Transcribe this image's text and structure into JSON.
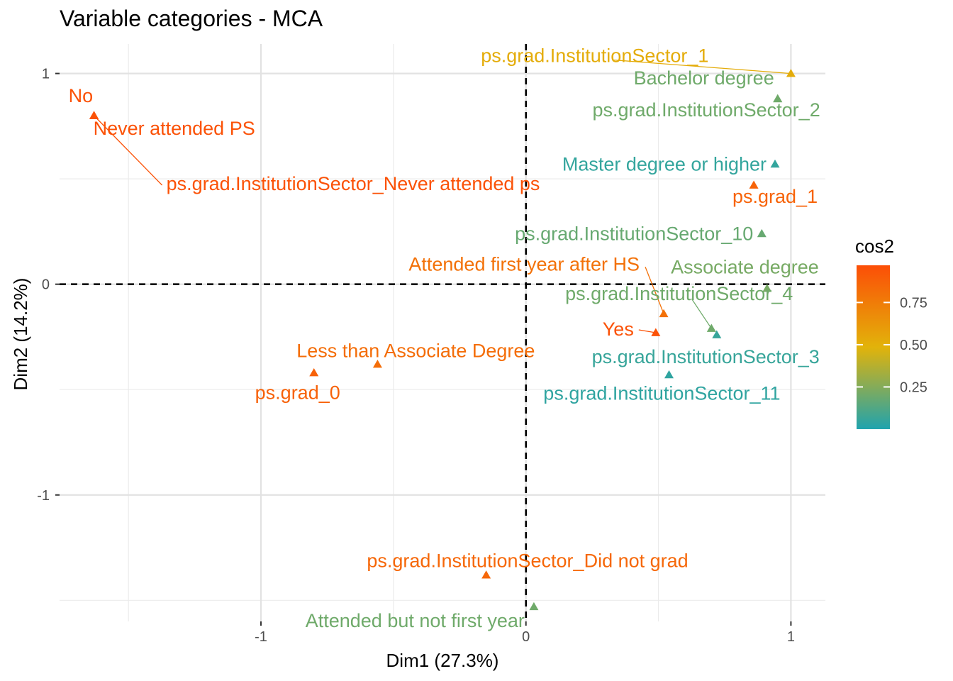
{
  "chart_data": {
    "type": "scatter",
    "title": "Variable categories - MCA",
    "xlabel": "Dim1 (27.3%)",
    "ylabel": "Dim2 (14.2%)",
    "xlim": [
      -1.76,
      1.13
    ],
    "ylim": [
      -1.6,
      1.14
    ],
    "x_ticks": [
      {
        "value": -1,
        "label": "-1"
      },
      {
        "value": 0,
        "label": "0"
      },
      {
        "value": 1,
        "label": "1"
      }
    ],
    "y_ticks": [
      {
        "value": 1,
        "label": "1"
      },
      {
        "value": 0,
        "label": "0"
      },
      {
        "value": -1,
        "label": "-1"
      }
    ],
    "grid": true,
    "reference_lines": {
      "x": 0,
      "y": 0,
      "style": "dashed"
    },
    "legend": {
      "title": "cos2",
      "position": "right",
      "range": [
        0.0,
        0.97
      ],
      "ticks": [
        {
          "value": 0.25,
          "label": "0.25"
        },
        {
          "value": 0.5,
          "label": "0.50"
        },
        {
          "value": 0.75,
          "label": "0.75"
        }
      ],
      "colors": {
        "low": "#1FA3AE",
        "mid": "#E2B30A",
        "high": "#FC4E07"
      }
    },
    "points": [
      {
        "label": "ps.grad.InstitutionSector_1",
        "x": 1.0,
        "y": 1.0,
        "cos2": 0.52
      },
      {
        "label": "Bachelor degree",
        "x": 0.95,
        "y": 0.88,
        "cos2": 0.2
      },
      {
        "label": "ps.grad.InstitutionSector_2",
        "x": 0.95,
        "y": 0.88,
        "cos2": 0.2
      },
      {
        "label": "No",
        "x": -1.63,
        "y": 0.8,
        "cos2": 0.95
      },
      {
        "label": "Never attended PS",
        "x": -1.63,
        "y": 0.8,
        "cos2": 0.95
      },
      {
        "label": "ps.grad.InstitutionSector_Never attended ps",
        "x": -1.63,
        "y": 0.8,
        "cos2": 0.95
      },
      {
        "label": "Master degree or higher",
        "x": 0.94,
        "y": 0.57,
        "cos2": 0.05
      },
      {
        "label": "ps.grad_1",
        "x": 0.86,
        "y": 0.47,
        "cos2": 0.87
      },
      {
        "label": "ps.grad.InstitutionSector_10",
        "x": 0.89,
        "y": 0.24,
        "cos2": 0.18
      },
      {
        "label": "Associate degree",
        "x": 0.91,
        "y": -0.02,
        "cos2": 0.22
      },
      {
        "label": "Attended first year after HS",
        "x": 0.52,
        "y": -0.14,
        "cos2": 0.8
      },
      {
        "label": "ps.grad.InstitutionSector_4",
        "x": 0.7,
        "y": -0.21,
        "cos2": 0.2
      },
      {
        "label": "Yes",
        "x": 0.49,
        "y": -0.23,
        "cos2": 0.95
      },
      {
        "label": "ps.grad.InstitutionSector_3",
        "x": 0.72,
        "y": -0.24,
        "cos2": 0.06
      },
      {
        "label": "ps.grad.InstitutionSector_11",
        "x": 0.54,
        "y": -0.43,
        "cos2": 0.04
      },
      {
        "label": "Less than Associate Degree",
        "x": -0.56,
        "y": -0.38,
        "cos2": 0.82
      },
      {
        "label": "ps.grad_0",
        "x": -0.8,
        "y": -0.42,
        "cos2": 0.88
      },
      {
        "label": "ps.grad.InstitutionSector_Did not grad",
        "x": -0.15,
        "y": -1.38,
        "cos2": 0.85
      },
      {
        "label": "Attended but not first year",
        "x": 0.03,
        "y": -1.53,
        "cos2": 0.2
      }
    ]
  }
}
